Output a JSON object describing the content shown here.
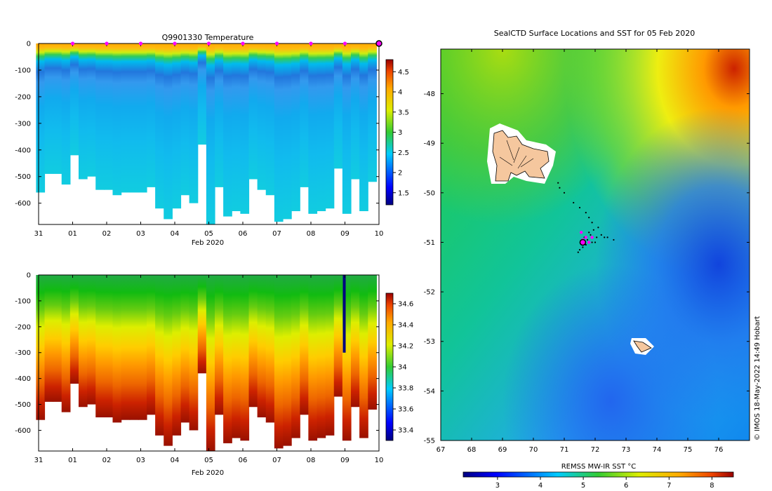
{
  "chart_data": [
    {
      "type": "heatmap",
      "id": "temperature-section",
      "title": "Q9901330  Temperature",
      "xlabel": "Feb 2020",
      "x_tick_labels": [
        "31",
        "01",
        "02",
        "03",
        "04",
        "05",
        "06",
        "07",
        "08",
        "09",
        "10"
      ],
      "xlim_days": [
        0,
        10
      ],
      "ylim": [
        -680,
        0
      ],
      "y_ticks": [
        0,
        -100,
        -200,
        -300,
        -400,
        -500,
        -600
      ],
      "profile_days": [
        0.05,
        0.3,
        0.55,
        0.8,
        1.05,
        1.3,
        1.55,
        1.8,
        2.05,
        2.3,
        2.55,
        2.8,
        3.05,
        3.3,
        3.55,
        3.8,
        4.05,
        4.3,
        4.55,
        4.8,
        5.05,
        5.3,
        5.55,
        5.8,
        6.05,
        6.3,
        6.55,
        6.8,
        7.05,
        7.3,
        7.55,
        7.8,
        8.05,
        8.3,
        8.55,
        8.8,
        9.05,
        9.3,
        9.55,
        9.8
      ],
      "profile_max_depth": [
        -560,
        -490,
        -490,
        -530,
        -420,
        -510,
        -500,
        -550,
        -550,
        -570,
        -560,
        -560,
        -560,
        -540,
        -620,
        -660,
        -620,
        -570,
        -600,
        -380,
        -680,
        -540,
        -650,
        -630,
        -640,
        -510,
        -550,
        -570,
        -670,
        -660,
        -630,
        -540,
        -640,
        -630,
        -620,
        -470,
        -640,
        -510,
        -630,
        -520
      ],
      "cast_markers_days": [
        1,
        2,
        3,
        4,
        5,
        6,
        7,
        8,
        9
      ],
      "current_position_day": 10,
      "colorbar": {
        "min": 1.2,
        "max": 4.8,
        "ticks": [
          1.5,
          2,
          2.5,
          3,
          3.5,
          4,
          4.5
        ],
        "tick_labels": [
          "1.5",
          "2",
          "2.5",
          "3",
          "3.5",
          "4",
          "4.5"
        ]
      }
    },
    {
      "type": "heatmap",
      "id": "salinity-section",
      "title": "",
      "xlabel": "Feb 2020",
      "x_tick_labels": [
        "31",
        "01",
        "02",
        "03",
        "04",
        "05",
        "06",
        "07",
        "08",
        "09",
        "10"
      ],
      "xlim_days": [
        0,
        10
      ],
      "ylim": [
        -680,
        0
      ],
      "y_ticks": [
        0,
        -100,
        -200,
        -300,
        -400,
        -500,
        -600
      ],
      "anomalous_profile_day": 8.98,
      "colorbar": {
        "min": 33.3,
        "max": 34.7,
        "ticks": [
          33.4,
          33.6,
          33.8,
          34,
          34.2,
          34.4,
          34.6
        ],
        "tick_labels": [
          "33.4",
          "33.6",
          "33.8",
          "34",
          "34.2",
          "34.4",
          "34.6"
        ]
      }
    },
    {
      "type": "heatmap",
      "id": "sst-map",
      "title": "SealCTD Surface Locations and SST for 05 Feb 2020",
      "x_range_lon": [
        67,
        77
      ],
      "y_range_lat": [
        -55,
        -47.1
      ],
      "x_tick_labels": [
        "67",
        "68",
        "69",
        "70",
        "71",
        "72",
        "73",
        "74",
        "75",
        "76"
      ],
      "y_tick_labels": [
        "-48",
        "-49",
        "-50",
        "-51",
        "-52",
        "-53",
        "-54",
        "-55"
      ],
      "land": [
        "Kerguelen Islands (~69-70.6E, 48.6-49.7S)",
        "Heard Island (~73.5E, 53.1S)"
      ],
      "track_points": [
        [
          70.8,
          -49.8
        ],
        [
          70.85,
          -49.9
        ],
        [
          71,
          -50
        ],
        [
          71.3,
          -50.2
        ],
        [
          71.5,
          -50.3
        ],
        [
          71.7,
          -50.4
        ],
        [
          71.8,
          -50.5
        ],
        [
          71.9,
          -50.6
        ],
        [
          72.1,
          -50.7
        ],
        [
          71.95,
          -50.75
        ],
        [
          71.8,
          -50.8
        ],
        [
          72.2,
          -50.85
        ],
        [
          72.4,
          -50.9
        ],
        [
          72.6,
          -50.95
        ],
        [
          72.05,
          -50.9
        ],
        [
          71.9,
          -51
        ],
        [
          71.7,
          -51.05
        ],
        [
          71.6,
          -51.1
        ],
        [
          71.5,
          -51.15
        ],
        [
          71.45,
          -51.2
        ],
        [
          71.75,
          -50.95
        ],
        [
          72,
          -51
        ],
        [
          72.3,
          -50.9
        ],
        [
          71.85,
          -50.85
        ],
        [
          71.65,
          -50.9
        ]
      ],
      "surface_locations": [
        [
          71.7,
          -50.9
        ],
        [
          71.8,
          -51.0
        ],
        [
          71.6,
          -50.95
        ],
        [
          71.9,
          -50.9
        ],
        [
          71.55,
          -50.8
        ]
      ],
      "current_location": [
        71.6,
        -51.0
      ],
      "colorbar": {
        "label": "REMSS MW-IR SST °C",
        "min": 2.2,
        "max": 8.5,
        "ticks": [
          3,
          4,
          5,
          6,
          7,
          8
        ],
        "tick_labels": [
          "3",
          "4",
          "5",
          "6",
          "7",
          "8"
        ]
      },
      "credit": "© IMOS 18-May-2022 14:49 Hobart"
    }
  ]
}
